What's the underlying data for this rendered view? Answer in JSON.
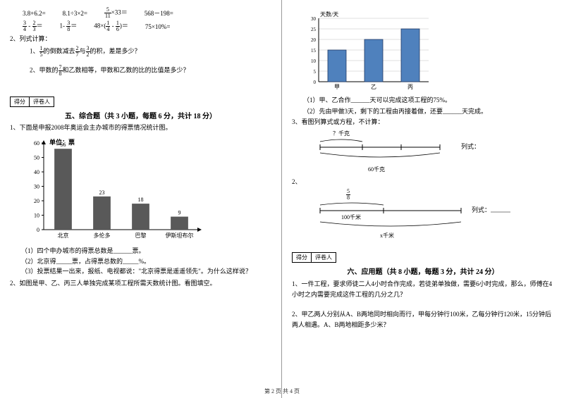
{
  "left": {
    "expr_row1": {
      "a": "3.8+6.2=",
      "b": "8.1÷3×2=",
      "c_pre": "",
      "c_num": "5",
      "c_den": "11",
      "c_post": "×33＝",
      "d": "568－198="
    },
    "expr_row2": {
      "a_n1": "3",
      "a_d1": "4",
      "a_mid": " - ",
      "a_n2": "2",
      "a_d2": "3",
      "a_post": "＝",
      "b_pre": "1- ",
      "b_n": "3",
      "b_d": "8",
      "b_post": "＝",
      "c_pre": "48×(",
      "c_n1": "1",
      "c_d1": "4",
      "c_mid": " - ",
      "c_n2": "1",
      "c_d2": "6",
      "c_post": ")＝",
      "d": "75×10%="
    },
    "q2_label": "2、列式计算：",
    "q2_1_pre": "1、",
    "q2_1_n1": "1",
    "q2_1_d1": "5",
    "q2_1_mid1": "的倒数减去",
    "q2_1_n2": "2",
    "q2_1_d2": "7",
    "q2_1_mid2": "与",
    "q2_1_n3": "3",
    "q2_1_d3": "2",
    "q2_1_post": "的积，差是多少？",
    "q2_2_pre": "2、甲数的",
    "q2_2_n": "7",
    "q2_2_d": "8",
    "q2_2_post": "和乙数相等，甲数和乙数的比的比值是多少？",
    "score_a": "得分",
    "score_b": "评卷人",
    "sec5_title": "五、综合题（共 3 小题，每题 6 分，共计 18 分）",
    "sec5_q1": "1、下面是申报2008年奥运会主办城市的得票情况统计图。",
    "chart1": {
      "unit_label": "单位：票",
      "ymax": 60,
      "ystep": 10,
      "categories": [
        "北京",
        "多伦多",
        "巴黎",
        "伊斯坦布尔"
      ],
      "values": [
        56,
        23,
        18,
        9
      ],
      "bar_color": "#595959",
      "axis_color": "#000000",
      "label_fontsize": 8
    },
    "sec5_sub1": "（1）四个申办城市的得票总数是______票。",
    "sec5_sub2": "（2）北京得_____票，占得票总数的_____%。",
    "sec5_sub3": "（3）投票结果一出来，报纸、电视都说：\"北京得票是遥遥领先\"。为什么这样说？",
    "sec5_q2": "2、如图是甲、乙、丙三人单独完成某项工程所需天数统计图。看图填空。"
  },
  "right": {
    "chart2": {
      "y_title": "天数/天",
      "ymax": 30,
      "ystep": 5,
      "categories": [
        "甲",
        "乙",
        "丙"
      ],
      "values": [
        15,
        20,
        25
      ],
      "bar_fill": "#4f81bd",
      "bar_stroke": "#1f3864",
      "grid_color": "#bfbfbf",
      "axis_color": "#000000"
    },
    "r_sub1_pre": "（1）甲、乙合作______天可以完成这项工程的75%。",
    "r_sub2": "（2）先由甲做3天，剩下的工程由丙接着做，还要______天完成。",
    "r_q3": "3、看图列算式或方程，不计算：",
    "diag1_top": "？千克",
    "diag1_bottom": "60千克",
    "diag1_side": "列式：",
    "diag2_label": "2、",
    "diag2_frac_n": "5",
    "diag2_frac_d": "8",
    "diag2_mid": "100千米",
    "diag2_bottom": "x千米",
    "diag2_side": "列式：______",
    "score_a": "得分",
    "score_b": "评卷人",
    "sec6_title": "六、应用题（共 8 小题，每题 3 分，共计 24 分）",
    "sec6_q1": "1、一件工程，要求师徒二人4小时合作完成，若徒弟单独做，需要6小时完成，那么，师傅在4小时之内需要完成这件工程的几分之几？",
    "sec6_q2": "2、甲乙两人分别从A、B两地同时相向而行，甲每分钟行100米，乙每分钟行120米，15分钟后两人相遇。A、B两地相距多少米？"
  },
  "footer": "第 2 页 共 4 页"
}
